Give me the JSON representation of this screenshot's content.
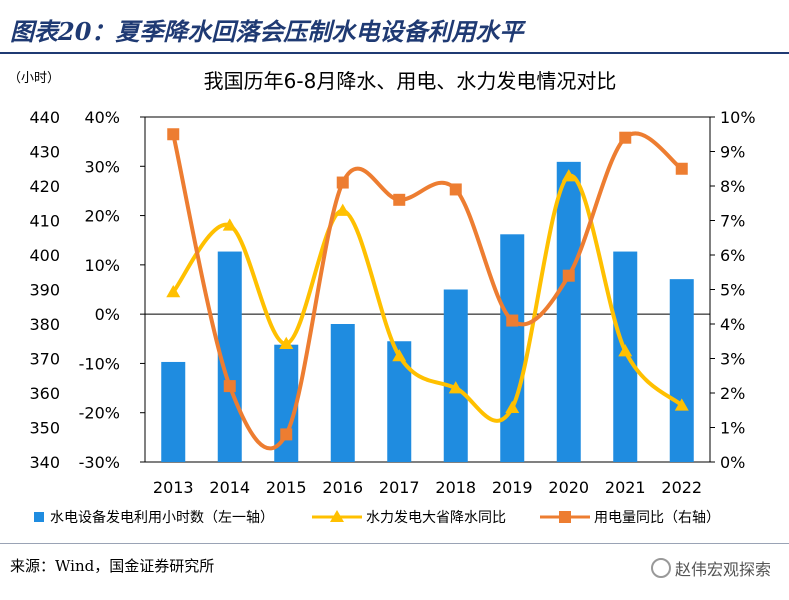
{
  "header": {
    "title": "图表20：夏季降水回落会压制水电设备利用水平"
  },
  "footer": {
    "source": "来源：Wind，国金证券研究所",
    "watermark": "赵伟宏观探索"
  },
  "colors": {
    "bar": "#1f8ce0",
    "rain": "#ffc000",
    "power": "#ed7d31",
    "title": "#1f3a73"
  },
  "chart_data": {
    "type": "bar",
    "title": "我国历年6-8月降水、用电、水力发电情况对比",
    "unit_label": "（小时）",
    "categories": [
      "2013",
      "2014",
      "2015",
      "2016",
      "2017",
      "2018",
      "2019",
      "2020",
      "2021",
      "2022"
    ],
    "axes": {
      "left1": {
        "min": 340,
        "max": 440,
        "step": 10,
        "ticks": [
          "340",
          "350",
          "360",
          "370",
          "380",
          "390",
          "400",
          "410",
          "420",
          "430",
          "440"
        ]
      },
      "left2": {
        "min": -30,
        "max": 40,
        "step": 10,
        "ticks": [
          "-30%",
          "-20%",
          "-10%",
          "0%",
          "10%",
          "20%",
          "30%",
          "40%"
        ]
      },
      "right": {
        "min": 0,
        "max": 10,
        "step": 1,
        "ticks": [
          "0%",
          "1%",
          "2%",
          "3%",
          "4%",
          "5%",
          "6%",
          "7%",
          "8%",
          "9%",
          "10%"
        ]
      }
    },
    "series": [
      {
        "name": "水电设备发电利用小时数（左一轴）",
        "type": "bar",
        "axis": "left1",
        "values": [
          369,
          401,
          374,
          380,
          375,
          390,
          406,
          427,
          401,
          393
        ]
      },
      {
        "name": "水力发电大省降水同比",
        "type": "line",
        "axis": "left2",
        "values": [
          4.5,
          18,
          -6,
          21,
          -8.5,
          -15,
          -19,
          28,
          -7.5,
          -18.5
        ]
      },
      {
        "name": "用电量同比（右轴）",
        "type": "line",
        "axis": "right",
        "values": [
          9.5,
          2.2,
          0.8,
          8.1,
          7.6,
          7.9,
          4.1,
          5.4,
          9.4,
          8.5
        ]
      }
    ]
  }
}
